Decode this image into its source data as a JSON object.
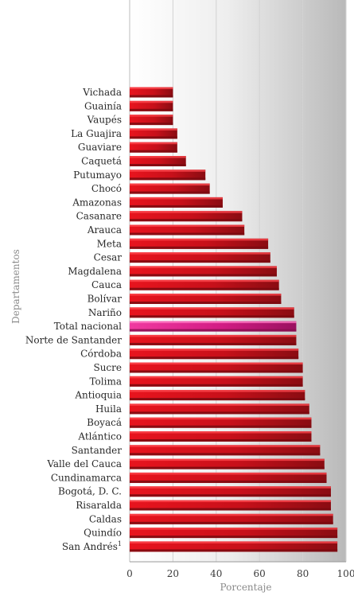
{
  "chart_data": {
    "type": "bar",
    "orientation": "horizontal",
    "title": "",
    "xlabel": "Porcentaje",
    "ylabel": "Departamentos",
    "xlim": [
      0,
      100
    ],
    "xticks": [
      "0",
      "20",
      "40",
      "60",
      "80",
      "100"
    ],
    "grid": true,
    "categories": [
      "Vichada",
      "Guainía",
      "Vaupés",
      "La Guajira",
      "Guaviare",
      "Caquetá",
      "Putumayo",
      "Chocó",
      "Amazonas",
      "Casanare",
      "Arauca",
      "Meta",
      "Cesar",
      "Magdalena",
      "Cauca",
      "Bolívar",
      "Nariño",
      "Total nacional",
      "Norte de Santander",
      "Córdoba",
      "Sucre",
      "Tolima",
      "Antioquia",
      "Huila",
      "Boyacá",
      "Atlántico",
      "Santander",
      "Valle del Cauca",
      "Cundinamarca",
      "Bogotá, D. C.",
      "Risaralda",
      "Caldas",
      "Quindío",
      "San Andrés"
    ],
    "category_footnotes": {
      "San Andrés": "1"
    },
    "values": [
      20,
      20,
      20,
      22,
      22,
      26,
      35,
      37,
      43,
      52,
      53,
      64,
      65,
      68,
      69,
      70,
      76,
      77,
      77,
      78,
      80,
      80,
      81,
      83,
      84,
      84,
      88,
      90,
      91,
      93,
      93,
      94,
      96,
      96
    ],
    "highlight": "Total nacional",
    "colors": {
      "bar": "#d4141c",
      "bar_dark": "#7a0a10",
      "highlight": "#e0288a",
      "highlight_dark": "#8a0f50"
    }
  }
}
